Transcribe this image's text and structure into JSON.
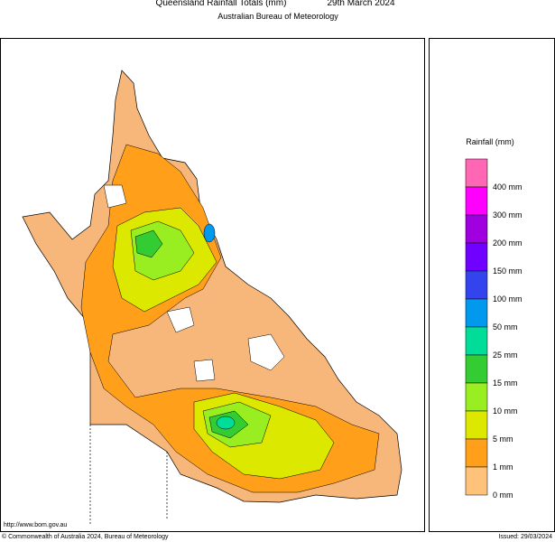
{
  "header": {
    "title": "Queensland Rainfall Totals (mm)",
    "date": "29th March 2024",
    "subtitle": "Australian Bureau of Meteorology"
  },
  "legend": {
    "title": "Rainfall (mm)",
    "items": [
      {
        "label": "400 mm",
        "color": "#ff66b3"
      },
      {
        "label": "300 mm",
        "color": "#ff00ff"
      },
      {
        "label": "200 mm",
        "color": "#a000e0"
      },
      {
        "label": "150 mm",
        "color": "#7000ff"
      },
      {
        "label": "100 mm",
        "color": "#3344ee"
      },
      {
        "label": "50 mm",
        "color": "#0099ee"
      },
      {
        "label": "25 mm",
        "color": "#00dd99"
      },
      {
        "label": "15 mm",
        "color": "#33cc33"
      },
      {
        "label": "10 mm",
        "color": "#99ee22"
      },
      {
        "label": "5 mm",
        "color": "#dde800"
      },
      {
        "label": "1 mm",
        "color": "#ff9f1a"
      },
      {
        "label": "0 mm",
        "color": "#ffc27a"
      }
    ],
    "bottom_color": "#ffffff"
  },
  "footer": {
    "url": "http://www.bom.gov.au",
    "copyright": "© Commonwealth of Australia 2024, Bureau of Meteorology",
    "issued": "Issued: 29/03/2024"
  }
}
